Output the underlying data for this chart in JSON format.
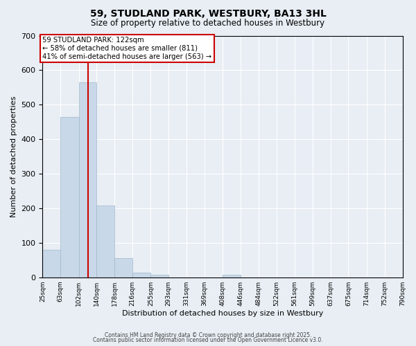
{
  "title": "59, STUDLAND PARK, WESTBURY, BA13 3HL",
  "subtitle": "Size of property relative to detached houses in Westbury",
  "xlabel": "Distribution of detached houses by size in Westbury",
  "ylabel": "Number of detached properties",
  "bar_color": "#c8d8e8",
  "bar_edgecolor": "#a0b8cc",
  "background_color": "#e8eef4",
  "grid_color": "#ffffff",
  "bin_edges": [
    25,
    63,
    102,
    140,
    178,
    216,
    255,
    293,
    331,
    369,
    408,
    446,
    484,
    522,
    561,
    599,
    637,
    675,
    714,
    752,
    790
  ],
  "bin_labels": [
    "25sqm",
    "63sqm",
    "102sqm",
    "140sqm",
    "178sqm",
    "216sqm",
    "255sqm",
    "293sqm",
    "331sqm",
    "369sqm",
    "408sqm",
    "446sqm",
    "484sqm",
    "522sqm",
    "561sqm",
    "599sqm",
    "637sqm",
    "675sqm",
    "714sqm",
    "752sqm",
    "790sqm"
  ],
  "bar_heights": [
    80,
    465,
    565,
    207,
    55,
    13,
    7,
    0,
    0,
    0,
    7,
    0,
    0,
    0,
    0,
    0,
    0,
    0,
    0,
    0
  ],
  "vline_x": 122,
  "vline_color": "#cc0000",
  "annotation_line1": "59 STUDLAND PARK: 122sqm",
  "annotation_line2": "← 58% of detached houses are smaller (811)",
  "annotation_line3": "41% of semi-detached houses are larger (563) →",
  "ylim": [
    0,
    700
  ],
  "yticks": [
    0,
    100,
    200,
    300,
    400,
    500,
    600,
    700
  ],
  "footnote1": "Contains HM Land Registry data © Crown copyright and database right 2025.",
  "footnote2": "Contains public sector information licensed under the Open Government Licence v3.0."
}
